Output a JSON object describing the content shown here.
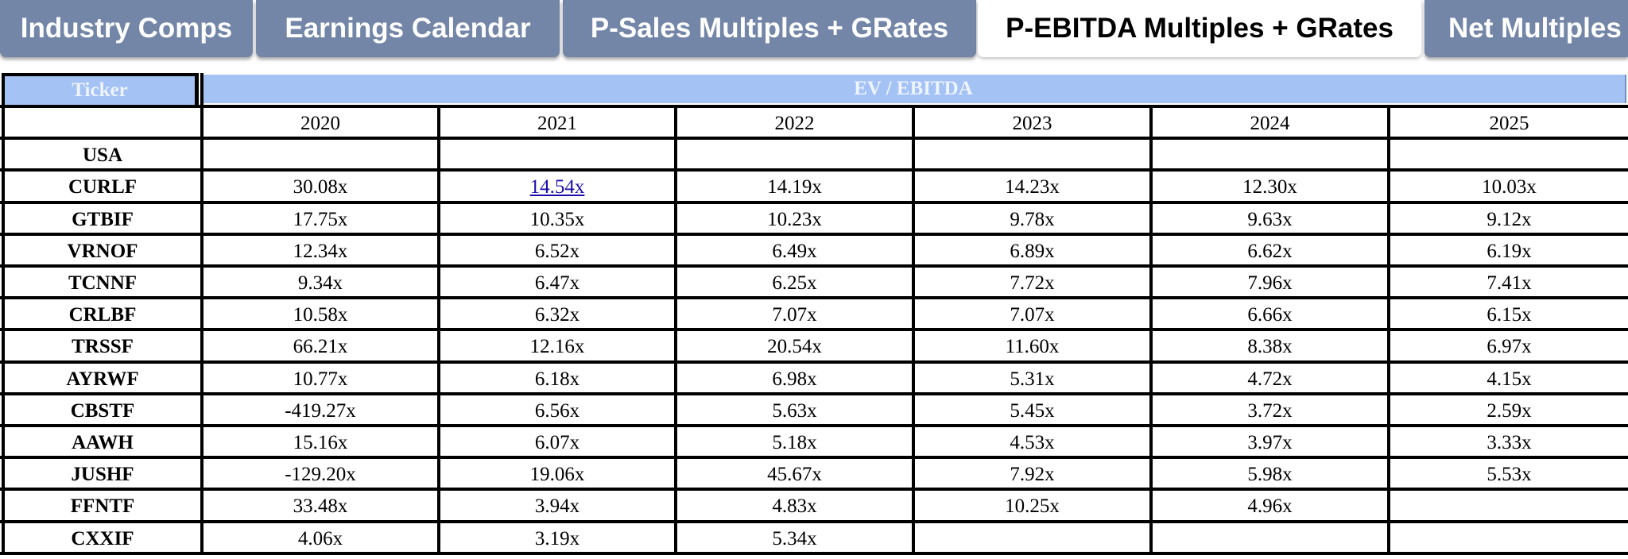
{
  "tabs": [
    {
      "label": "Industry Comps",
      "active": false
    },
    {
      "label": "Earnings Calendar",
      "active": false
    },
    {
      "label": "P-Sales Multiples + GRates",
      "active": false
    },
    {
      "label": "P-EBITDA Multiples + GRates",
      "active": true
    },
    {
      "label": "Net Multiples",
      "active": false
    }
  ],
  "table": {
    "ticker_header": "Ticker",
    "metric_header": "EV / EBITDA",
    "years": [
      "2020",
      "2021",
      "2022",
      "2023",
      "2024",
      "2025"
    ],
    "rows": [
      {
        "ticker": "USA",
        "values": [
          "",
          "",
          "",
          "",
          "",
          ""
        ]
      },
      {
        "ticker": "CURLF",
        "values": [
          "30.08x",
          "14.54x",
          "14.19x",
          "14.23x",
          "12.30x",
          "10.03x"
        ]
      },
      {
        "ticker": "GTBIF",
        "values": [
          "17.75x",
          "10.35x",
          "10.23x",
          "9.78x",
          "9.63x",
          "9.12x"
        ]
      },
      {
        "ticker": "VRNOF",
        "values": [
          "12.34x",
          "6.52x",
          "6.49x",
          "6.89x",
          "6.62x",
          "6.19x"
        ]
      },
      {
        "ticker": "TCNNF",
        "values": [
          "9.34x",
          "6.47x",
          "6.25x",
          "7.72x",
          "7.96x",
          "7.41x"
        ]
      },
      {
        "ticker": "CRLBF",
        "values": [
          "10.58x",
          "6.32x",
          "7.07x",
          "7.07x",
          "6.66x",
          "6.15x"
        ]
      },
      {
        "ticker": "TRSSF",
        "values": [
          "66.21x",
          "12.16x",
          "20.54x",
          "11.60x",
          "8.38x",
          "6.97x"
        ]
      },
      {
        "ticker": "AYRWF",
        "values": [
          "10.77x",
          "6.18x",
          "6.98x",
          "5.31x",
          "4.72x",
          "4.15x"
        ]
      },
      {
        "ticker": "CBSTF",
        "values": [
          "-419.27x",
          "6.56x",
          "5.63x",
          "5.45x",
          "3.72x",
          "2.59x"
        ]
      },
      {
        "ticker": "AAWH",
        "values": [
          "15.16x",
          "6.07x",
          "5.18x",
          "4.53x",
          "3.97x",
          "3.33x"
        ]
      },
      {
        "ticker": "JUSHF",
        "values": [
          "-129.20x",
          "19.06x",
          "45.67x",
          "7.92x",
          "5.98x",
          "5.53x"
        ]
      },
      {
        "ticker": "FFNTF",
        "values": [
          "33.48x",
          "3.94x",
          "4.83x",
          "10.25x",
          "4.96x",
          ""
        ]
      },
      {
        "ticker": "CXXIF",
        "values": [
          "4.06x",
          "3.19x",
          "5.34x",
          "",
          "",
          ""
        ]
      }
    ],
    "linked_cell": {
      "row": 1,
      "col": 1
    }
  },
  "colors": {
    "tab_inactive": "#7386a7",
    "tab_active": "#ffffff",
    "header_fill": "#a4c2f4",
    "link": "#1a0dab"
  }
}
